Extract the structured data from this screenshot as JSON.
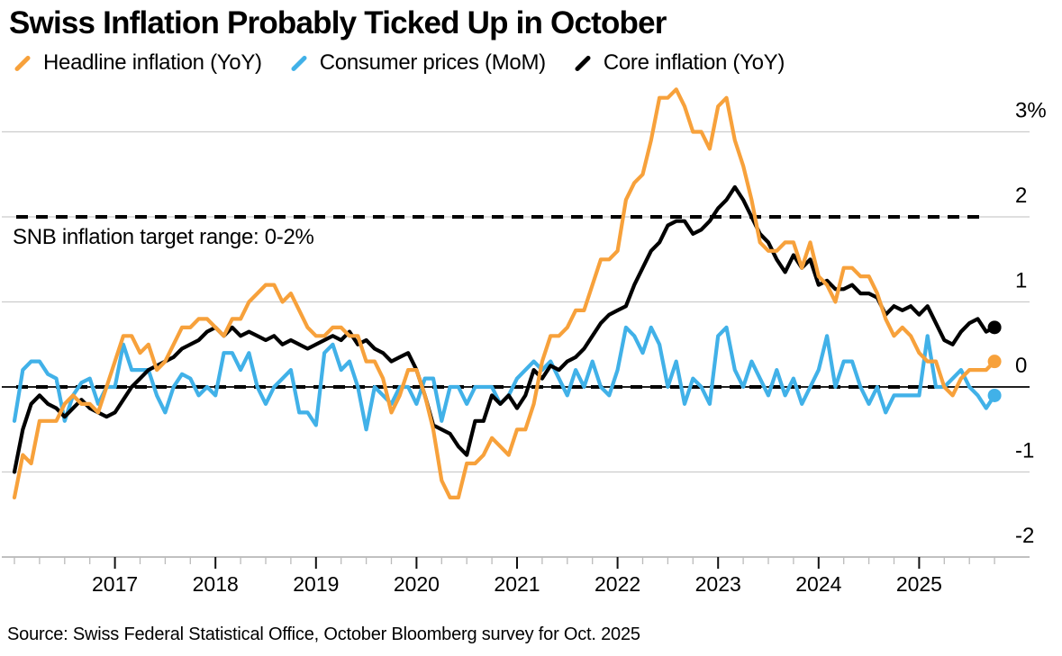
{
  "title": "Swiss Inflation Probably Ticked Up in October",
  "annotation": "SNB inflation target range: 0-2%",
  "source": "Source: Swiss Federal Statistical Office, October Bloomberg survey for Oct. 2025",
  "colors": {
    "headline": "#F7A13B",
    "consumer_mom": "#41B1E8",
    "core": "#000000",
    "gridline": "#cccccc",
    "axis": "#9a9a9a",
    "minor_tick": "#bbbbbb",
    "major_tick": "#111111"
  },
  "legend": [
    {
      "label": "Headline inflation (YoY)",
      "color": "#F7A13B"
    },
    {
      "label": "Consumer prices (MoM)",
      "color": "#41B1E8"
    },
    {
      "label": "Core inflation (YoY)",
      "color": "#000000"
    }
  ],
  "chart_data": {
    "type": "line",
    "title": "Swiss Inflation Probably Ticked Up in October",
    "x_start": "2016-01",
    "x_end": "2025-10",
    "x_frequency": "monthly",
    "x_tick_labels": [
      "2017",
      "2018",
      "2019",
      "2020",
      "2021",
      "2022",
      "2023",
      "2024",
      "2025"
    ],
    "ylim": [
      -2,
      3
    ],
    "grid": true,
    "legend_position": "top",
    "y_ticks": [
      {
        "value": 3,
        "label": "3%"
      },
      {
        "value": 2,
        "label": "2"
      },
      {
        "value": 1,
        "label": "1"
      },
      {
        "value": 0,
        "label": "0"
      },
      {
        "value": -1,
        "label": "-1"
      },
      {
        "value": -2,
        "label": "-2"
      }
    ],
    "reference_lines": [
      {
        "value": 2,
        "style": "dashed",
        "note": "SNB target upper bound"
      },
      {
        "value": 0,
        "style": "dashed-over-solid",
        "note": "SNB target lower bound / zero line"
      }
    ],
    "series": [
      {
        "name": "Consumer prices (MoM)",
        "color": "#41B1E8",
        "end_dot": true,
        "values": [
          -0.4,
          0.2,
          0.3,
          0.3,
          0.15,
          0.1,
          -0.4,
          -0.1,
          0.05,
          0.1,
          -0.2,
          0.0,
          0.0,
          0.5,
          0.2,
          0.2,
          0.2,
          -0.1,
          -0.3,
          0.0,
          0.15,
          0.1,
          -0.1,
          0.0,
          -0.1,
          0.4,
          0.4,
          0.2,
          0.4,
          0.0,
          -0.2,
          0.0,
          0.1,
          0.2,
          -0.3,
          -0.3,
          -0.45,
          0.4,
          0.5,
          0.2,
          0.3,
          0.0,
          -0.5,
          0.0,
          -0.1,
          -0.2,
          0.0,
          0.0,
          -0.2,
          0.1,
          0.1,
          -0.4,
          0.0,
          0.0,
          -0.2,
          0.0,
          0.0,
          0.0,
          -0.2,
          -0.1,
          0.1,
          0.2,
          0.3,
          0.2,
          0.3,
          0.1,
          -0.1,
          0.2,
          0.0,
          0.3,
          0.0,
          -0.1,
          0.2,
          0.7,
          0.6,
          0.4,
          0.7,
          0.5,
          0.0,
          0.3,
          -0.2,
          0.1,
          0.0,
          -0.2,
          0.6,
          0.7,
          0.2,
          0.0,
          0.3,
          0.1,
          -0.1,
          0.2,
          -0.1,
          0.1,
          -0.2,
          0.0,
          0.2,
          0.6,
          0.0,
          0.3,
          0.3,
          0.0,
          -0.2,
          0.0,
          -0.3,
          -0.1,
          -0.1,
          -0.1,
          -0.1,
          0.6,
          0.0,
          0.0,
          0.1,
          0.2,
          0.0,
          -0.1,
          -0.25,
          -0.1
        ]
      },
      {
        "name": "Core inflation (YoY)",
        "color": "#000000",
        "end_dot": true,
        "values": [
          -1.0,
          -0.5,
          -0.2,
          -0.1,
          -0.2,
          -0.25,
          -0.35,
          -0.25,
          -0.15,
          -0.25,
          -0.3,
          -0.35,
          -0.3,
          -0.15,
          0.0,
          0.1,
          0.2,
          0.25,
          0.3,
          0.35,
          0.45,
          0.5,
          0.55,
          0.65,
          0.7,
          0.6,
          0.7,
          0.6,
          0.65,
          0.6,
          0.55,
          0.6,
          0.5,
          0.55,
          0.5,
          0.45,
          0.5,
          0.55,
          0.6,
          0.55,
          0.65,
          0.5,
          0.55,
          0.45,
          0.4,
          0.3,
          0.35,
          0.4,
          0.2,
          -0.1,
          -0.45,
          -0.5,
          -0.55,
          -0.7,
          -0.8,
          -0.4,
          -0.4,
          -0.1,
          -0.2,
          -0.1,
          -0.25,
          -0.1,
          0.2,
          0.1,
          0.25,
          0.2,
          0.3,
          0.35,
          0.45,
          0.6,
          0.75,
          0.85,
          0.9,
          0.95,
          1.2,
          1.4,
          1.6,
          1.7,
          1.9,
          1.95,
          1.95,
          1.8,
          1.85,
          1.95,
          2.1,
          2.2,
          2.35,
          2.2,
          2.0,
          1.8,
          1.7,
          1.5,
          1.35,
          1.55,
          1.4,
          1.5,
          1.2,
          1.25,
          1.15,
          1.15,
          1.2,
          1.1,
          1.1,
          1.05,
          0.85,
          0.95,
          0.9,
          0.95,
          0.85,
          0.95,
          0.75,
          0.55,
          0.5,
          0.65,
          0.75,
          0.8,
          0.65,
          0.7
        ]
      },
      {
        "name": "Headline inflation (YoY)",
        "color": "#F7A13B",
        "end_dot": true,
        "values": [
          -1.3,
          -0.8,
          -0.9,
          -0.4,
          -0.4,
          -0.4,
          -0.2,
          -0.1,
          -0.2,
          -0.2,
          -0.3,
          0.0,
          0.3,
          0.6,
          0.6,
          0.4,
          0.5,
          0.2,
          0.3,
          0.5,
          0.7,
          0.7,
          0.8,
          0.8,
          0.7,
          0.6,
          0.8,
          0.8,
          1.0,
          1.1,
          1.2,
          1.2,
          1.0,
          1.1,
          0.9,
          0.7,
          0.6,
          0.6,
          0.7,
          0.7,
          0.6,
          0.6,
          0.3,
          0.3,
          0.1,
          -0.3,
          -0.1,
          0.2,
          0.2,
          -0.1,
          -0.5,
          -1.1,
          -1.3,
          -1.3,
          -0.9,
          -0.9,
          -0.8,
          -0.6,
          -0.7,
          -0.8,
          -0.5,
          -0.5,
          -0.2,
          0.3,
          0.6,
          0.6,
          0.7,
          0.9,
          0.9,
          1.2,
          1.5,
          1.5,
          1.6,
          2.2,
          2.4,
          2.5,
          2.9,
          3.4,
          3.4,
          3.5,
          3.3,
          3.0,
          3.0,
          2.8,
          3.3,
          3.4,
          2.9,
          2.6,
          2.2,
          1.7,
          1.6,
          1.6,
          1.7,
          1.7,
          1.4,
          1.7,
          1.3,
          1.2,
          1.0,
          1.4,
          1.4,
          1.3,
          1.3,
          1.1,
          0.8,
          0.6,
          0.7,
          0.6,
          0.4,
          0.3,
          0.3,
          0.0,
          -0.1,
          0.1,
          0.2,
          0.2,
          0.2,
          0.3
        ]
      }
    ]
  }
}
